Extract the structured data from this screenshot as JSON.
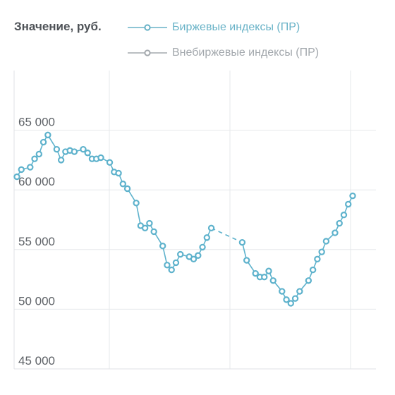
{
  "chart_data": {
    "type": "line",
    "ylabel": "Значение, руб.",
    "yticks": [
      "65 000",
      "60 000",
      "55 000",
      "50 000",
      "45 000"
    ],
    "ytick_values": [
      65000,
      60000,
      55000,
      50000,
      45000
    ],
    "ylim": [
      45000,
      70000
    ],
    "grid": true,
    "legend_position": "top",
    "series": [
      {
        "name": "Биржевые индексы (ПР)",
        "color": "#5eb2cc",
        "values": [
          [
            0,
            61100
          ],
          [
            1,
            61700
          ],
          [
            3,
            61900
          ],
          [
            4,
            62600
          ],
          [
            5,
            63000
          ],
          [
            6,
            64000
          ],
          [
            7,
            64600
          ],
          [
            9,
            63400
          ],
          [
            10,
            62500
          ],
          [
            11,
            63200
          ],
          [
            12,
            63300
          ],
          [
            13,
            63200
          ],
          [
            15,
            63400
          ],
          [
            16,
            63100
          ],
          [
            17,
            62600
          ],
          [
            18,
            62600
          ],
          [
            19,
            62700
          ],
          [
            21,
            62300
          ],
          [
            22,
            61500
          ],
          [
            23,
            61400
          ],
          [
            24,
            60500
          ],
          [
            25,
            60100
          ],
          [
            27,
            58900
          ],
          [
            28,
            57000
          ],
          [
            29,
            56800
          ],
          [
            30,
            57200
          ],
          [
            31,
            56500
          ],
          [
            33,
            55300
          ],
          [
            34,
            53700
          ],
          [
            35,
            53300
          ],
          [
            36,
            53900
          ],
          [
            37,
            54600
          ],
          [
            39,
            54400
          ],
          [
            40,
            54200
          ],
          [
            41,
            54500
          ],
          [
            42,
            55200
          ],
          [
            43,
            56000
          ],
          [
            44,
            56800
          ],
          [
            51,
            55600
          ],
          [
            52,
            54100
          ],
          [
            54,
            53000
          ],
          [
            55,
            52700
          ],
          [
            56,
            52700
          ],
          [
            57,
            53200
          ],
          [
            58,
            52400
          ],
          [
            60,
            51500
          ],
          [
            61,
            50800
          ],
          [
            62,
            50500
          ],
          [
            63,
            50900
          ],
          [
            64,
            51500
          ],
          [
            66,
            52400
          ],
          [
            67,
            53300
          ],
          [
            68,
            54200
          ],
          [
            69,
            54800
          ],
          [
            70,
            55700
          ],
          [
            72,
            56400
          ],
          [
            73,
            57200
          ],
          [
            74,
            57900
          ],
          [
            75,
            58800
          ],
          [
            76,
            59500
          ]
        ],
        "gap_after_index": 37
      },
      {
        "name": "Внебиржевые индексы (ПР)",
        "color": "#a3a8ad",
        "values": []
      }
    ]
  }
}
